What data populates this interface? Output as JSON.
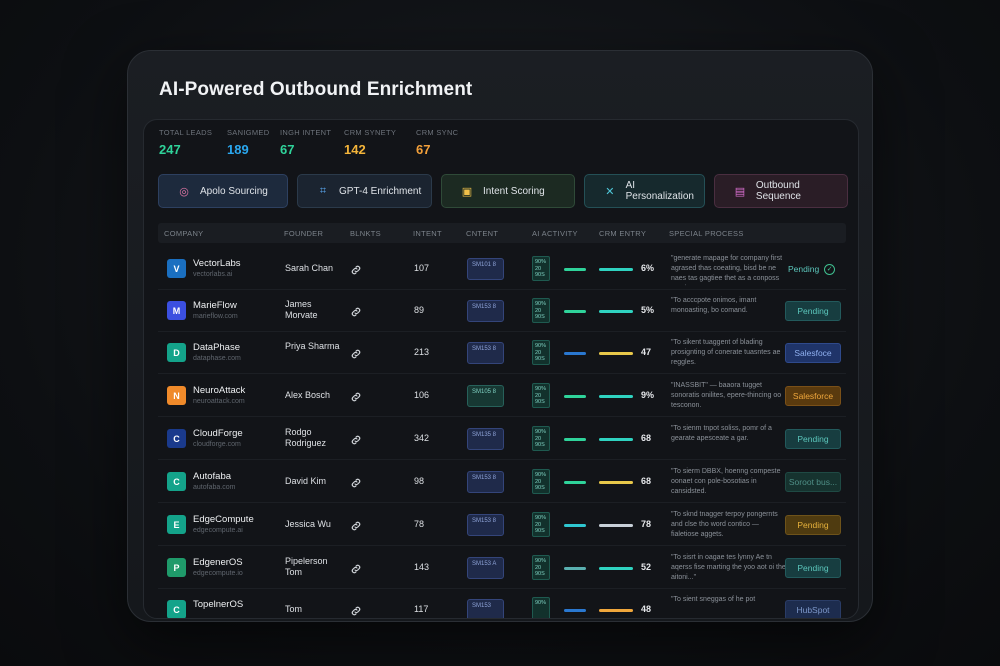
{
  "title": "AI-Powered Outbound Enrichment",
  "stats": [
    {
      "label": "TOTAL LEADS",
      "value": "247",
      "color": "#2fd39a"
    },
    {
      "label": "SANIGMED",
      "value": "189",
      "color": "#2aa8f0"
    },
    {
      "label": "INGH INTENT",
      "value": "67",
      "color": "#2fd39a"
    },
    {
      "label": "CRM SYNETY",
      "value": "142",
      "color": "#f3b43a"
    },
    {
      "label": "CRM SYNC",
      "value": "67",
      "color": "#f3a03a"
    }
  ],
  "stages": [
    {
      "label": "Apolo Sourcing",
      "icon": "target-icon",
      "glyph": "◎",
      "bg": "#1d2a3d",
      "border": "#2d4060",
      "iconColor": "#e879a8"
    },
    {
      "label": "GPT-4 Enrichment",
      "icon": "circuit-icon",
      "glyph": "⌗",
      "bg": "#1b2430",
      "border": "#2b3a4a",
      "iconColor": "#5aa7f0"
    },
    {
      "label": "Intent Scoring",
      "icon": "calendar-icon",
      "glyph": "▣",
      "bg": "#1c2a22",
      "border": "#2f4a38",
      "iconColor": "#f0c04a"
    },
    {
      "label": "AI Personalization",
      "icon": "cross-icon",
      "glyph": "✕",
      "bg": "#16292d",
      "border": "#245056",
      "iconColor": "#4fc7d9"
    },
    {
      "label": "Outbound Sequence",
      "icon": "inbox-icon",
      "glyph": "▤",
      "bg": "#2a1d26",
      "border": "#4a2e40",
      "iconColor": "#d96fd0"
    }
  ],
  "columns": [
    "COMPANY",
    "FOUNDER",
    "BLNKTS",
    "INTENT",
    "CNTENT",
    "AI ACTIVITY",
    "CRM ENTRY",
    "SPECIAL PROCESS"
  ],
  "rows": [
    {
      "letter": "V",
      "logoColor": "#1a6fc0",
      "company": "VectorLabs",
      "domain": "vectorlabs.ai",
      "founder": "Sarah Chan",
      "intent": "107",
      "chip": "SM101 8",
      "chipStyle": "blue",
      "ai": "90% 20 90S",
      "bar1": "#2fd39a",
      "bar2": "#2fd3c0",
      "pct": "6%",
      "process": "\"generate mapage for company first agrased thas coeating, bisd be ne naes tas gagtiee thet as a conposs magies.",
      "status": "Pending",
      "statusStyle": "plain",
      "check": "✓"
    },
    {
      "letter": "M",
      "logoColor": "#3b4fe0",
      "company": "MarieFlow",
      "domain": "marieflow.com",
      "founder": "James Morvate",
      "intent": "89",
      "chip": "SM153 8",
      "chipStyle": "blue",
      "ai": "90% 20 90S",
      "bar1": "#2fd39a",
      "bar2": "#2fd3c0",
      "pct": "5%",
      "process": "\"To acccpote onimos, imant monoasting, bo comand.",
      "status": "Pending",
      "statusStyle": "pending"
    },
    {
      "letter": "D",
      "logoColor": "#14a38a",
      "company": "DataPhase",
      "domain": "dataphase.com",
      "founder": "Priya Sharma",
      "intent": "213",
      "chip": "SM153 8",
      "chipStyle": "blue",
      "ai": "90% 20 90S",
      "bar1": "#2a78d0",
      "bar2": "#e8c84a",
      "pct": "47",
      "process": "\"To sikent tuaggent of blading prosignting of conerate tuasntes ae reggles.",
      "status": "Salesfoce",
      "statusStyle": "sales"
    },
    {
      "letter": "N",
      "logoColor": "#f08a2a",
      "company": "NeuroAttack",
      "domain": "neuroattack.com",
      "founder": "Alex Bosch",
      "intent": "106",
      "chip": "SM105 8",
      "chipStyle": "teal",
      "ai": "90% 20 90S",
      "bar1": "#2fd39a",
      "bar2": "#2fd3c0",
      "pct": "9%",
      "process": "\"INASSBIT\" — baaora tugget sonoratis onilites, epere-thincing oo tesconon.",
      "status": "Salesforce",
      "statusStyle": "salesorange"
    },
    {
      "letter": "C",
      "logoColor": "#1a3a8c",
      "company": "CloudForge",
      "domain": "cloudforge.com",
      "founder": "Rodgo Rodriguez",
      "intent": "342",
      "chip": "SM135 8",
      "chipStyle": "blue",
      "ai": "90% 20 90S",
      "bar1": "#2fd39a",
      "bar2": "#2fd3c0",
      "pct": "68",
      "process": "\"To sienm tnpot soliss, pomr of a gearate apesceate a gar.",
      "status": "Pending",
      "statusStyle": "pending"
    },
    {
      "letter": "C",
      "logoColor": "#14a38a",
      "company": "Autofaba",
      "domain": "autofaba.com",
      "founder": "David Kim",
      "intent": "98",
      "chip": "SM153 8",
      "chipStyle": "blue",
      "ai": "90% 20 90S",
      "bar1": "#2fd39a",
      "bar2": "#e8c84a",
      "pct": "68",
      "process": "\"To sierm DBBX, hoenng compeste oonaet con pole-bosotias in cansidsted.",
      "status": "Soroot bus...",
      "statusStyle": "muted"
    },
    {
      "letter": "E",
      "logoColor": "#14a38a",
      "company": "EdgeCompute",
      "domain": "edgecompute.ai",
      "founder": "Jessica Wu",
      "intent": "78",
      "chip": "SM153 8",
      "chipStyle": "blue",
      "ai": "90% 20 90S",
      "bar1": "#2fc7d0",
      "bar2": "#c8d0d8",
      "pct": "78",
      "process": "\"To sknd tnagger terpoy pongernts and clse tho word contico — fialetiose aggets.",
      "status": "Pending",
      "statusStyle": "pendorange"
    },
    {
      "letter": "P",
      "logoColor": "#1f9a6a",
      "company": "EdgenerOS",
      "domain": "edgecompute.io",
      "founder": "Pipelerson Tom",
      "intent": "143",
      "chip": "SM153 A",
      "chipStyle": "blue",
      "ai": "90% 20 90S",
      "bar1": "#5ab0b0",
      "bar2": "#2fd3c0",
      "pct": "52",
      "process": "\"To sisrt in oagae tes lynny Ae tn aqerss fise marting the yoo aot oi the aitoni...\"",
      "status": "Pending",
      "statusStyle": "pending"
    },
    {
      "letter": "C",
      "logoColor": "#14a38a",
      "company": "TopelnerOS",
      "domain": "",
      "founder": "Tom",
      "intent": "117",
      "chip": "SM153",
      "chipStyle": "blue",
      "ai": "90%",
      "bar1": "#2a78d0",
      "bar2": "#f0a73c",
      "pct": "48",
      "process": "\"To sient sneggas of he pot",
      "status": "HubSpot",
      "statusStyle": "hub"
    }
  ]
}
